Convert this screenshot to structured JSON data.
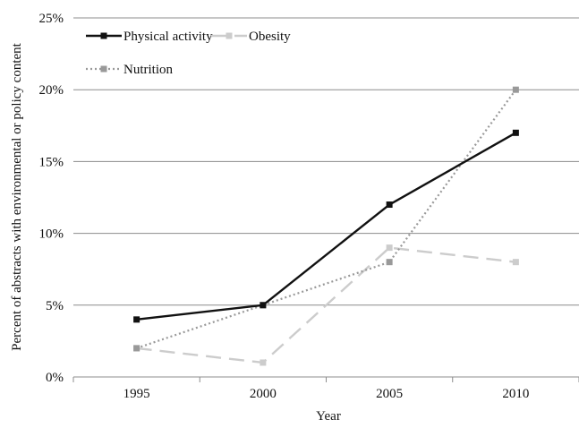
{
  "chart_data": {
    "type": "line",
    "title": "",
    "xlabel": "Year",
    "ylabel": "Percent of abstracts with environmental or policy content",
    "categories": [
      "1995",
      "2000",
      "2005",
      "2010"
    ],
    "ylim": [
      0,
      25
    ],
    "yticks": [
      0,
      5,
      10,
      15,
      20,
      25
    ],
    "ytick_labels": [
      "0%",
      "5%",
      "10%",
      "15%",
      "20%",
      "25%"
    ],
    "grid": "horizontal",
    "legend_position": "top-left",
    "series": [
      {
        "name": "Physical activity",
        "values": [
          4,
          5,
          12,
          17
        ],
        "color": "#111111",
        "line_style": "solid",
        "marker": "square"
      },
      {
        "name": "Obesity",
        "values": [
          2,
          1,
          9,
          8
        ],
        "color": "#cccccc",
        "line_style": "long-dash",
        "marker": "square"
      },
      {
        "name": "Nutrition",
        "values": [
          2,
          5,
          8,
          20
        ],
        "color": "#999999",
        "line_style": "dotted",
        "marker": "square"
      }
    ]
  }
}
